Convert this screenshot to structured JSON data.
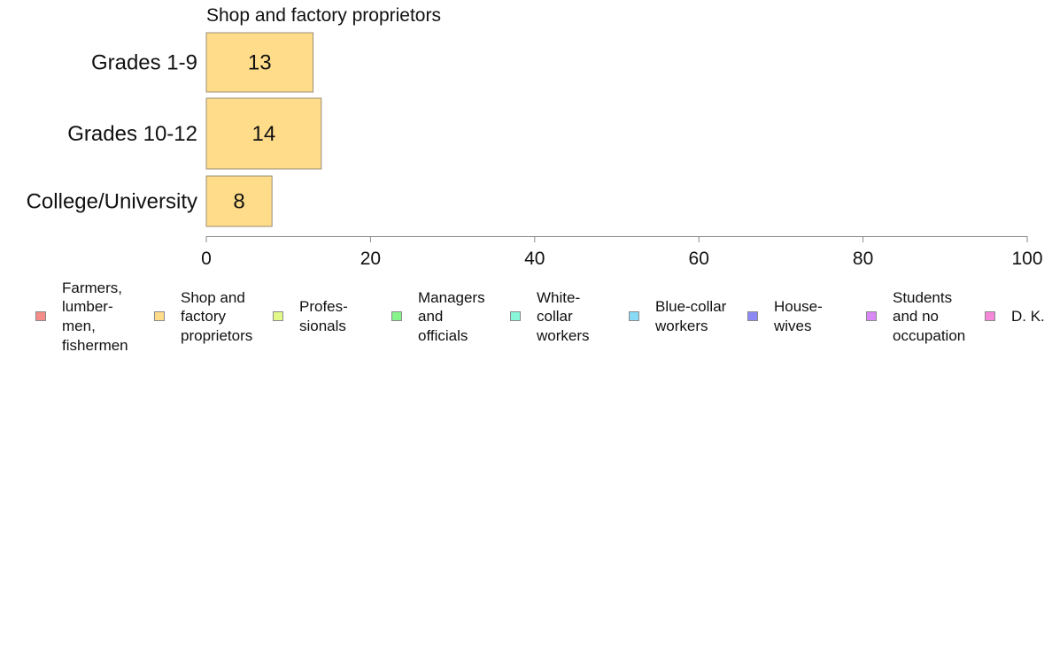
{
  "chart_data": {
    "type": "bar",
    "orientation": "horizontal",
    "title": "Shop and factory proprietors",
    "categories": [
      "Grades 1-9",
      "Grades 10-12",
      "College/University"
    ],
    "values": [
      13,
      14,
      8
    ],
    "data_labels": [
      "13",
      "14",
      "8"
    ],
    "xlim": [
      0,
      100
    ],
    "x_ticks": [
      0,
      20,
      40,
      60,
      80,
      100
    ],
    "x_tick_labels": [
      "0",
      "20",
      "40",
      "60",
      "80",
      "100"
    ],
    "grid": false,
    "legend_position": "bottom",
    "bar_color": "#FFDC8A",
    "bar_border_color": "#9A8E74",
    "legend": [
      {
        "label": "Farmers,\nlumber-\nmen,\nfishermen",
        "color": "#F48C88"
      },
      {
        "label": "Shop and\nfactory\nproprietors",
        "color": "#FFDC8A"
      },
      {
        "label": "Profes-\nsionals",
        "color": "#E2F98A"
      },
      {
        "label": "Managers\nand\nofficials",
        "color": "#87F48C"
      },
      {
        "label": "White-\ncollar\nworkers",
        "color": "#88F6DA"
      },
      {
        "label": "Blue-collar\nworkers",
        "color": "#88DAF6"
      },
      {
        "label": "House-\nwives",
        "color": "#8C88F4"
      },
      {
        "label": "Students\nand no\noccupation",
        "color": "#DA88F6"
      },
      {
        "label": "D. K.",
        "color": "#F688DA"
      }
    ]
  }
}
